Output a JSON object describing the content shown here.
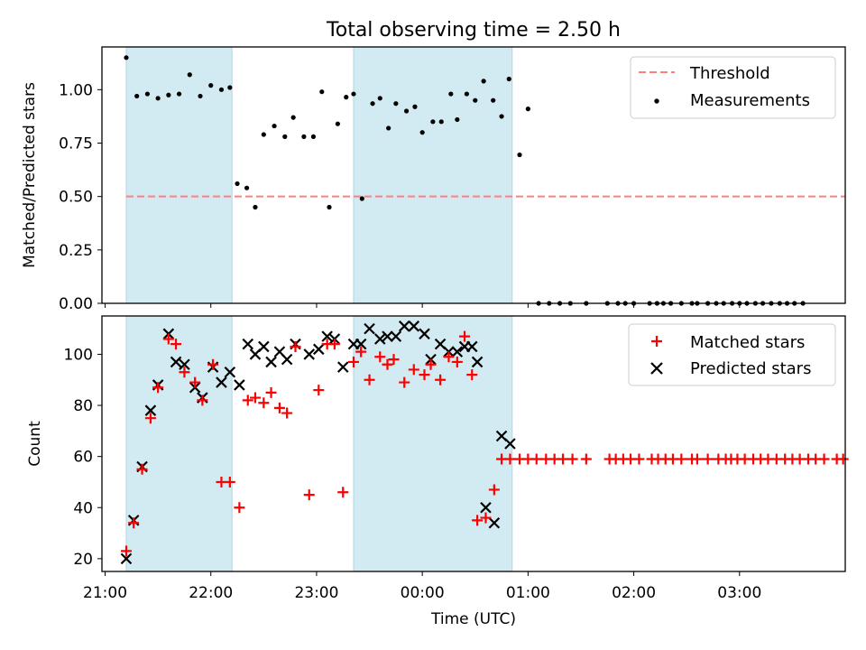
{
  "figure": {
    "title": "Total observing time = 2.50 h",
    "xlabel": "Time (UTC)",
    "x_ticks": [
      "21:00",
      "22:00",
      "23:00",
      "00:00",
      "01:00",
      "02:00",
      "03:00"
    ],
    "x_tick_hours": [
      21,
      22,
      23,
      24,
      25,
      26,
      27
    ],
    "x_range_hours": [
      20.97,
      28.0
    ],
    "shaded_intervals_hours": [
      [
        21.2,
        22.2
      ],
      [
        23.35,
        24.85
      ]
    ],
    "shade_color": "#add8e6"
  },
  "chart_data": [
    {
      "type": "scatter",
      "ylabel": "Matched/Predicted stars",
      "ylim": [
        0,
        1.2
      ],
      "yticks": [
        "0.00",
        "0.25",
        "0.50",
        "0.75",
        "1.00"
      ],
      "ytick_values": [
        0,
        0.25,
        0.5,
        0.75,
        1.0
      ],
      "legend_position": "top-right",
      "threshold": {
        "name": "Threshold",
        "value": 0.5,
        "x_range": [
          21.2,
          28.0
        ],
        "color": "#ff7f7f"
      },
      "series": [
        {
          "name": "Measurements",
          "color": "#000000",
          "x": [
            21.2,
            21.3,
            21.4,
            21.5,
            21.6,
            21.7,
            21.8,
            21.9,
            22.0,
            22.1,
            22.18,
            22.25,
            22.34,
            22.42,
            22.5,
            22.6,
            22.7,
            22.78,
            22.88,
            22.97,
            23.05,
            23.12,
            23.2,
            23.28,
            23.35,
            23.43,
            23.53,
            23.6,
            23.68,
            23.75,
            23.85,
            23.93,
            24.0,
            24.1,
            24.18,
            24.27,
            24.33,
            24.42,
            24.5,
            24.58,
            24.67,
            24.75,
            24.82,
            24.92,
            25.0,
            25.1,
            25.2,
            25.3,
            25.4,
            25.55,
            25.75,
            25.85,
            25.92,
            26.0,
            26.15,
            26.22,
            26.28,
            26.35,
            26.45,
            26.55,
            26.6,
            26.7,
            26.78,
            26.85,
            26.93,
            27.0,
            27.07,
            27.15,
            27.22,
            27.3,
            27.38,
            27.45,
            27.52,
            27.6
          ],
          "y": [
            1.15,
            0.97,
            0.98,
            0.96,
            0.975,
            0.98,
            1.07,
            0.97,
            1.02,
            1.0,
            1.01,
            0.56,
            0.54,
            0.45,
            0.79,
            0.83,
            0.78,
            0.87,
            0.78,
            0.78,
            0.99,
            0.45,
            0.84,
            0.965,
            0.98,
            0.49,
            0.935,
            0.96,
            0.82,
            0.935,
            0.9,
            0.92,
            0.8,
            0.85,
            0.85,
            0.98,
            0.86,
            0.98,
            0.95,
            1.04,
            0.95,
            0.875,
            1.05,
            0.695,
            0.91,
            0,
            0,
            0,
            0,
            0,
            0,
            0,
            0,
            0,
            0,
            0,
            0,
            0,
            0,
            0,
            0,
            0,
            0,
            0,
            0,
            0,
            0,
            0,
            0,
            0,
            0,
            0,
            0,
            0
          ]
        }
      ]
    },
    {
      "type": "scatter",
      "ylabel": "Count",
      "ylim": [
        15,
        115
      ],
      "yticks": [
        "20",
        "40",
        "60",
        "80",
        "100"
      ],
      "ytick_values": [
        20,
        40,
        60,
        80,
        100
      ],
      "legend_position": "top-right",
      "series": [
        {
          "name": "Matched stars",
          "marker": "+",
          "color": "#ff0000",
          "x": [
            21.2,
            21.27,
            21.35,
            21.43,
            21.5,
            21.6,
            21.67,
            21.75,
            21.85,
            21.92,
            22.02,
            22.1,
            22.18,
            22.27,
            22.35,
            22.42,
            22.5,
            22.57,
            22.65,
            22.72,
            22.8,
            22.93,
            23.02,
            23.1,
            23.17,
            23.25,
            23.35,
            23.42,
            23.5,
            23.6,
            23.67,
            23.73,
            23.83,
            23.92,
            24.02,
            24.08,
            24.17,
            24.25,
            24.33,
            24.4,
            24.47,
            24.52,
            24.6,
            24.68,
            24.75,
            24.83,
            24.92,
            25.0,
            25.08,
            25.17,
            25.25,
            25.33,
            25.42,
            25.55,
            25.77,
            25.83,
            25.9,
            25.97,
            26.05,
            26.17,
            26.23,
            26.3,
            26.37,
            26.45,
            26.55,
            26.6,
            26.7,
            26.8,
            26.87,
            26.92,
            26.98,
            27.05,
            27.13,
            27.2,
            27.27,
            27.35,
            27.43,
            27.5,
            27.57,
            27.65,
            27.72,
            27.8,
            27.92,
            27.98
          ],
          "y": [
            23,
            34,
            55,
            75,
            87,
            106,
            104,
            93,
            89,
            82,
            96,
            50,
            50,
            40,
            82,
            83,
            81,
            85,
            79,
            77,
            103,
            45,
            86,
            104,
            104,
            46,
            97,
            101,
            90,
            99,
            96,
            98,
            89,
            94,
            92,
            96,
            90,
            99,
            97,
            107,
            92,
            35,
            36,
            47,
            59,
            59,
            59,
            59,
            59,
            59,
            59,
            59,
            59,
            59,
            59,
            59,
            59,
            59,
            59,
            59,
            59,
            59,
            59,
            59,
            59,
            59,
            59,
            59,
            59,
            59,
            59,
            59,
            59,
            59,
            59,
            59,
            59,
            59,
            59,
            59,
            59,
            59,
            59,
            59
          ]
        },
        {
          "name": "Predicted stars",
          "marker": "x",
          "color": "#000000",
          "x": [
            21.2,
            21.27,
            21.35,
            21.43,
            21.5,
            21.6,
            21.67,
            21.75,
            21.85,
            21.92,
            22.02,
            22.1,
            22.18,
            22.27,
            22.35,
            22.42,
            22.5,
            22.57,
            22.65,
            22.72,
            22.8,
            22.93,
            23.02,
            23.1,
            23.17,
            23.25,
            23.35,
            23.42,
            23.5,
            23.6,
            23.67,
            23.75,
            23.83,
            23.92,
            24.02,
            24.08,
            24.17,
            24.25,
            24.33,
            24.4,
            24.47,
            24.52,
            24.6,
            24.68,
            24.75,
            24.83
          ],
          "y": [
            20,
            35,
            56,
            78,
            88,
            108,
            97,
            96,
            87,
            83,
            95,
            89,
            93,
            88,
            104,
            100,
            103,
            97,
            101,
            98,
            104,
            100,
            102,
            107,
            106,
            95,
            104,
            104,
            110,
            106,
            107,
            107,
            111,
            111,
            108,
            98,
            104,
            101,
            101,
            103,
            103,
            97,
            40,
            34,
            68,
            65
          ]
        }
      ]
    }
  ]
}
